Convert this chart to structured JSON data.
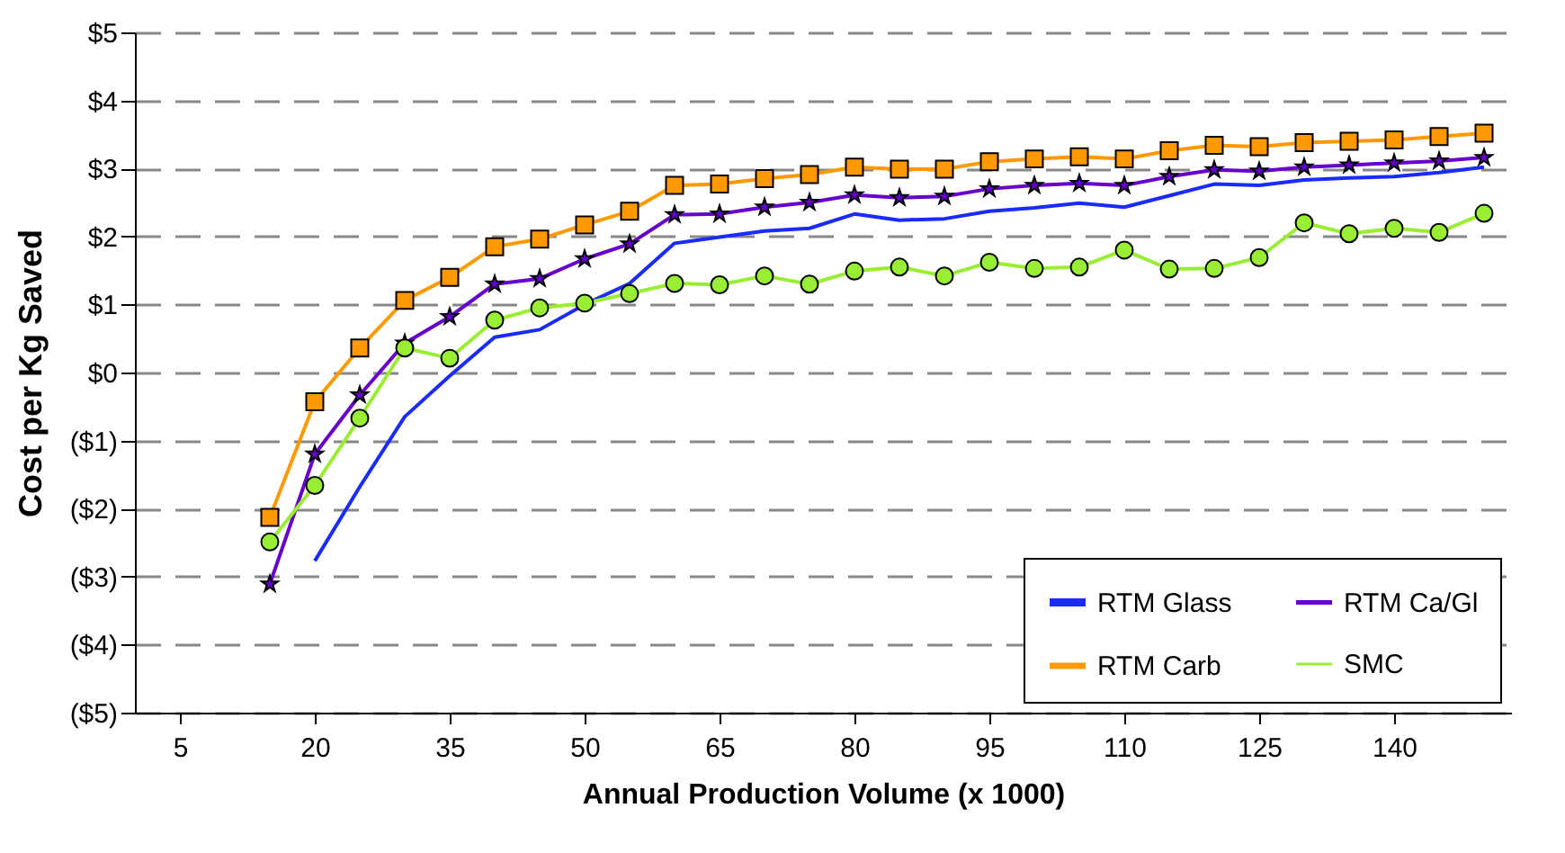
{
  "chart_data": {
    "type": "line",
    "xlabel": "Annual Production Volume (x 1000)",
    "ylabel": "Cost per Kg Saved",
    "x": [
      15,
      20,
      25,
      30,
      35,
      40,
      45,
      50,
      55,
      60,
      65,
      70,
      75,
      80,
      85,
      90,
      95,
      100,
      105,
      110,
      115,
      120,
      125,
      130,
      135,
      140,
      145,
      150
    ],
    "xlim": [
      0,
      153
    ],
    "xticks": [
      5,
      20,
      35,
      50,
      65,
      80,
      95,
      110,
      125,
      140
    ],
    "ylim": [
      -5,
      5
    ],
    "yticks": [
      {
        "value": -5,
        "label": "($5)"
      },
      {
        "value": -4,
        "label": "($4)"
      },
      {
        "value": -3,
        "label": "($3)"
      },
      {
        "value": -2,
        "label": "($2)"
      },
      {
        "value": -1,
        "label": "($1)"
      },
      {
        "value": 0,
        "label": "$0"
      },
      {
        "value": 1,
        "label": "$1"
      },
      {
        "value": 2,
        "label": "$2"
      },
      {
        "value": 3,
        "label": "$3"
      },
      {
        "value": 4,
        "label": "$4"
      },
      {
        "value": 5,
        "label": "$5"
      }
    ],
    "grid": "y",
    "legend": "bottom right",
    "series": [
      {
        "name": "RTM Glass",
        "color": "#1a2bff",
        "marker": "none",
        "values": [
          null,
          -2.77,
          -1.68,
          -0.65,
          -0.05,
          0.52,
          0.63,
          1.0,
          1.31,
          1.9,
          1.99,
          2.08,
          2.12,
          2.33,
          2.24,
          2.26,
          2.37,
          2.42,
          2.49,
          2.43,
          2.6,
          2.77,
          2.75,
          2.83,
          2.86,
          2.88,
          2.94,
          3.02
        ]
      },
      {
        "name": "RTM Carb",
        "color": "#ff9900",
        "marker": "square",
        "values": [
          -2.13,
          -0.43,
          0.36,
          1.06,
          1.4,
          1.85,
          1.96,
          2.17,
          2.37,
          2.75,
          2.77,
          2.85,
          2.91,
          3.02,
          2.99,
          2.99,
          3.1,
          3.14,
          3.17,
          3.14,
          3.26,
          3.34,
          3.32,
          3.38,
          3.4,
          3.42,
          3.47,
          3.52
        ]
      },
      {
        "name": "RTM Ca/Gl",
        "color": "#6600cc",
        "marker": "star",
        "values": [
          -3.11,
          -1.2,
          -0.33,
          0.43,
          0.82,
          1.3,
          1.38,
          1.67,
          1.89,
          2.32,
          2.33,
          2.43,
          2.5,
          2.61,
          2.57,
          2.59,
          2.7,
          2.75,
          2.78,
          2.75,
          2.88,
          2.98,
          2.96,
          3.02,
          3.05,
          3.08,
          3.11,
          3.16
        ]
      },
      {
        "name": "SMC",
        "color": "#99ee33",
        "marker": "circle",
        "values": [
          -2.49,
          -1.66,
          -0.67,
          0.36,
          0.21,
          0.77,
          0.95,
          1.02,
          1.16,
          1.31,
          1.29,
          1.42,
          1.3,
          1.49,
          1.55,
          1.42,
          1.62,
          1.53,
          1.55,
          1.8,
          1.52,
          1.53,
          1.69,
          2.2,
          2.04,
          2.12,
          2.06,
          2.34
        ]
      }
    ]
  }
}
